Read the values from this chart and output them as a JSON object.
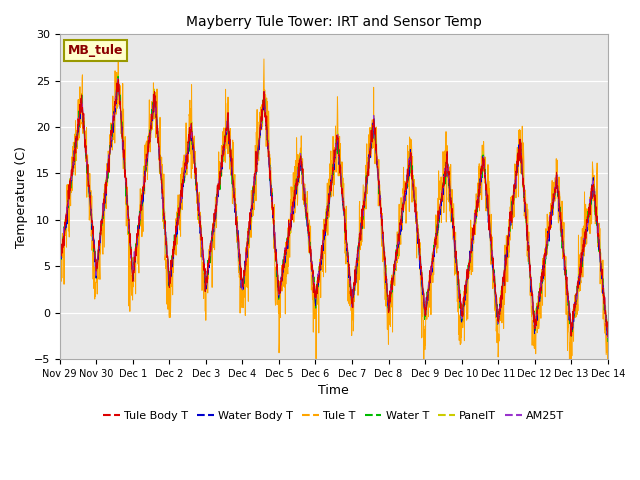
{
  "title": "Mayberry Tule Tower: IRT and Sensor Temp",
  "ylabel": "Temperature (C)",
  "xlabel": "Time",
  "watermark": "MB_tule",
  "ylim": [
    -5,
    30
  ],
  "background_color": "#e8e8e8",
  "series_colors": {
    "Tule Body T": "#dd0000",
    "Water Body T": "#0000cc",
    "Tule T": "#ffa500",
    "Water T": "#00bb00",
    "PanelT": "#cccc00",
    "AM25T": "#9933cc"
  },
  "xtick_labels": [
    "Nov 29",
    "Nov 30",
    "Dec 1",
    "Dec 2",
    "Dec 3",
    "Dec 4",
    "Dec 5",
    "Dec 6",
    "Dec 7",
    "Dec 8",
    "Dec 9",
    "Dec 10",
    "Dec 11",
    "Dec 12",
    "Dec 13",
    "Dec 14"
  ],
  "ytick_labels": [
    -5,
    0,
    5,
    10,
    15,
    20,
    25,
    30
  ],
  "n_points": 2000
}
